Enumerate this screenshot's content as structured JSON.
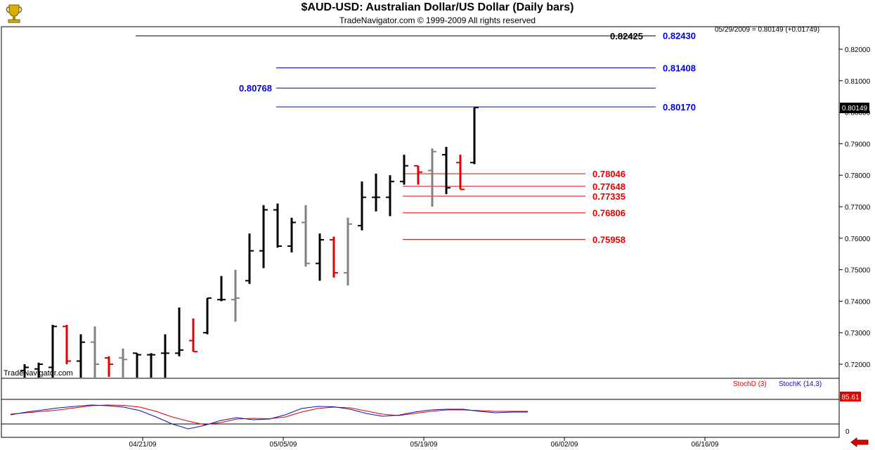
{
  "header": {
    "title": "$AUD-USD:  Australian Dollar/US Dollar  (Daily bars)",
    "subtitle": "TradeNavigator.com © 1999-2009 All rights reserved",
    "logo_icon": "trophy-icon"
  },
  "readout": "05/29/2009 = 0.80149 (+0.01749)",
  "watermark": "TradeNavigator.com",
  "last_price_label": "0.80149",
  "indicator": {
    "stochd_label": "StochD (3)",
    "stochk_label": "StochK (14,3)",
    "value_label": "85.61",
    "axis_label": "0",
    "stochd_color": "#e00000",
    "stochk_color": "#1010b0"
  },
  "colors": {
    "up_bar": "#000000",
    "down_bar": "#e00000",
    "gray_bar": "#808080",
    "blue_level": "#0000dd",
    "red_level": "#e00000",
    "black_level": "#000000"
  },
  "chart_data": {
    "type": "ohlc",
    "title": "$AUD-USD:  Australian Dollar/US Dollar  (Daily bars)",
    "y_ticks": [
      "0.72000",
      "0.73000",
      "0.74000",
      "0.75000",
      "0.76000",
      "0.77000",
      "0.78000",
      "0.79000",
      "0.80000",
      "0.81000",
      "0.82000"
    ],
    "ylim": [
      0.7155,
      0.824
    ],
    "x_ticks": [
      "04/21/09",
      "05/05/09",
      "05/19/09",
      "06/02/09",
      "06/16/09"
    ],
    "levels": [
      {
        "value": 0.82425,
        "label": "0.82425",
        "color": "black"
      },
      {
        "value": 0.8243,
        "label": "0.82430",
        "color": "blue"
      },
      {
        "value": 0.81408,
        "label": "0.81408",
        "color": "blue"
      },
      {
        "value": 0.80768,
        "label": "0.80768",
        "color": "blue"
      },
      {
        "value": 0.8017,
        "label": "0.80170",
        "color": "blue"
      },
      {
        "value": 0.78046,
        "label": "0.78046",
        "color": "red"
      },
      {
        "value": 0.77648,
        "label": "0.77648",
        "color": "red"
      },
      {
        "value": 0.77335,
        "label": "0.77335",
        "color": "red"
      },
      {
        "value": 0.76806,
        "label": "0.76806",
        "color": "red"
      },
      {
        "value": 0.75958,
        "label": "0.75958",
        "color": "red"
      }
    ],
    "bars": [
      {
        "o": 0.718,
        "h": 0.72,
        "l": 0.7155,
        "c": 0.719,
        "color": "black"
      },
      {
        "o": 0.7185,
        "h": 0.7205,
        "l": 0.7155,
        "c": 0.72,
        "color": "black"
      },
      {
        "o": 0.719,
        "h": 0.7325,
        "l": 0.7155,
        "c": 0.732,
        "color": "black"
      },
      {
        "o": 0.732,
        "h": 0.7325,
        "l": 0.72,
        "c": 0.721,
        "color": "red"
      },
      {
        "o": 0.721,
        "h": 0.7295,
        "l": 0.7155,
        "c": 0.727,
        "color": "black"
      },
      {
        "o": 0.727,
        "h": 0.732,
        "l": 0.7155,
        "c": 0.72,
        "color": "gray"
      },
      {
        "o": 0.722,
        "h": 0.7225,
        "l": 0.716,
        "c": 0.72,
        "color": "red"
      },
      {
        "o": 0.722,
        "h": 0.725,
        "l": 0.7155,
        "c": 0.7215,
        "color": "gray"
      },
      {
        "o": 0.7235,
        "h": 0.7235,
        "l": 0.7155,
        "c": 0.723,
        "color": "black"
      },
      {
        "o": 0.723,
        "h": 0.7235,
        "l": 0.7155,
        "c": 0.723,
        "color": "black"
      },
      {
        "o": 0.7235,
        "h": 0.7295,
        "l": 0.7155,
        "c": 0.7235,
        "color": "black"
      },
      {
        "o": 0.7235,
        "h": 0.738,
        "l": 0.7225,
        "c": 0.7245,
        "color": "black"
      },
      {
        "o": 0.7275,
        "h": 0.7345,
        "l": 0.724,
        "c": 0.724,
        "color": "red"
      },
      {
        "o": 0.73,
        "h": 0.741,
        "l": 0.7295,
        "c": 0.741,
        "color": "black"
      },
      {
        "o": 0.7405,
        "h": 0.748,
        "l": 0.74,
        "c": 0.7405,
        "color": "black"
      },
      {
        "o": 0.7405,
        "h": 0.75,
        "l": 0.7335,
        "c": 0.741,
        "color": "gray"
      },
      {
        "o": 0.7465,
        "h": 0.7615,
        "l": 0.7455,
        "c": 0.756,
        "color": "black"
      },
      {
        "o": 0.756,
        "h": 0.7705,
        "l": 0.7505,
        "c": 0.769,
        "color": "black"
      },
      {
        "o": 0.769,
        "h": 0.771,
        "l": 0.757,
        "c": 0.7575,
        "color": "black"
      },
      {
        "o": 0.7575,
        "h": 0.7665,
        "l": 0.7555,
        "c": 0.765,
        "color": "black"
      },
      {
        "o": 0.765,
        "h": 0.7705,
        "l": 0.751,
        "c": 0.752,
        "color": "gray"
      },
      {
        "o": 0.752,
        "h": 0.7615,
        "l": 0.7465,
        "c": 0.7595,
        "color": "black"
      },
      {
        "o": 0.7595,
        "h": 0.7605,
        "l": 0.7475,
        "c": 0.749,
        "color": "red"
      },
      {
        "o": 0.749,
        "h": 0.7665,
        "l": 0.745,
        "c": 0.7645,
        "color": "gray"
      },
      {
        "o": 0.764,
        "h": 0.778,
        "l": 0.7625,
        "c": 0.773,
        "color": "black"
      },
      {
        "o": 0.773,
        "h": 0.7805,
        "l": 0.7685,
        "c": 0.773,
        "color": "black"
      },
      {
        "o": 0.773,
        "h": 0.78,
        "l": 0.767,
        "c": 0.778,
        "color": "black"
      },
      {
        "o": 0.778,
        "h": 0.7865,
        "l": 0.777,
        "c": 0.783,
        "color": "black"
      },
      {
        "o": 0.783,
        "h": 0.783,
        "l": 0.777,
        "c": 0.781,
        "color": "red"
      },
      {
        "o": 0.7815,
        "h": 0.7885,
        "l": 0.77,
        "c": 0.7875,
        "color": "gray"
      },
      {
        "o": 0.7865,
        "h": 0.789,
        "l": 0.774,
        "c": 0.776,
        "color": "black"
      },
      {
        "o": 0.784,
        "h": 0.7865,
        "l": 0.7755,
        "c": 0.7755,
        "color": "red"
      },
      {
        "o": 0.784,
        "h": 0.8015,
        "l": 0.7835,
        "c": 0.8015,
        "color": "black"
      }
    ],
    "stoch_d": [
      28,
      32,
      36,
      40,
      46,
      52,
      54,
      53,
      48,
      36,
      20,
      8,
      -2,
      4,
      14,
      16,
      15,
      20,
      34,
      44,
      48,
      46,
      37,
      28,
      24,
      30,
      36,
      40,
      40,
      38,
      36,
      36,
      36
    ],
    "stoch_k": [
      26,
      34,
      40,
      46,
      50,
      54,
      52,
      48,
      38,
      20,
      0,
      -14,
      -4,
      10,
      18,
      12,
      14,
      26,
      44,
      50,
      49,
      42,
      30,
      22,
      25,
      34,
      40,
      42,
      42,
      36,
      32,
      34,
      34
    ]
  }
}
